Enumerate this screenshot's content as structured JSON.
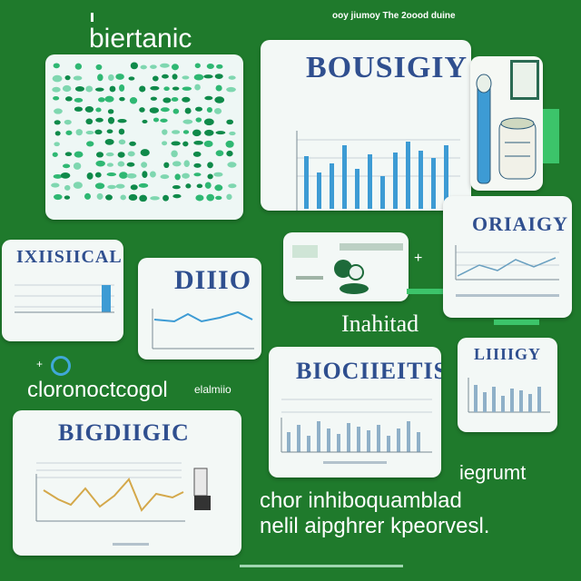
{
  "labels": {
    "top_left_word": "biertanic",
    "top_right_caption": "ooy jiumoy The 2oood duine",
    "card_top_right_title": "BOUSIGIY",
    "card_left_title": "IXIISIICAL",
    "card_dim_title": "DIIIO",
    "card_right_title": "ORIAIGY",
    "middle_word": "Inahitad",
    "left_mid_word": "cloronoctcogol",
    "left_mid_small": "elalmiio",
    "card_bio_title": "BIOCIIEITIS",
    "card_small_right_title": "LIIIIGY",
    "card_bottom_left_title": "BIGDIIGIC",
    "right_word": "iegrumt",
    "bottom_line_1": "chor inhiboquamblad",
    "bottom_line_2": "nelil aipghrer kpeorvesl."
  },
  "colors": {
    "background": "#1f7a2c",
    "card": "#f3f8f6",
    "title_blue": "#2f4f8f",
    "bar_blue": "#3d9bd4",
    "line_gold": "#d4a84a",
    "dot_green": "#1aa35a"
  },
  "icons": [
    "plus-icon",
    "circle-marker-icon",
    "flask-icon",
    "bottle-icon",
    "frame-icon"
  ]
}
